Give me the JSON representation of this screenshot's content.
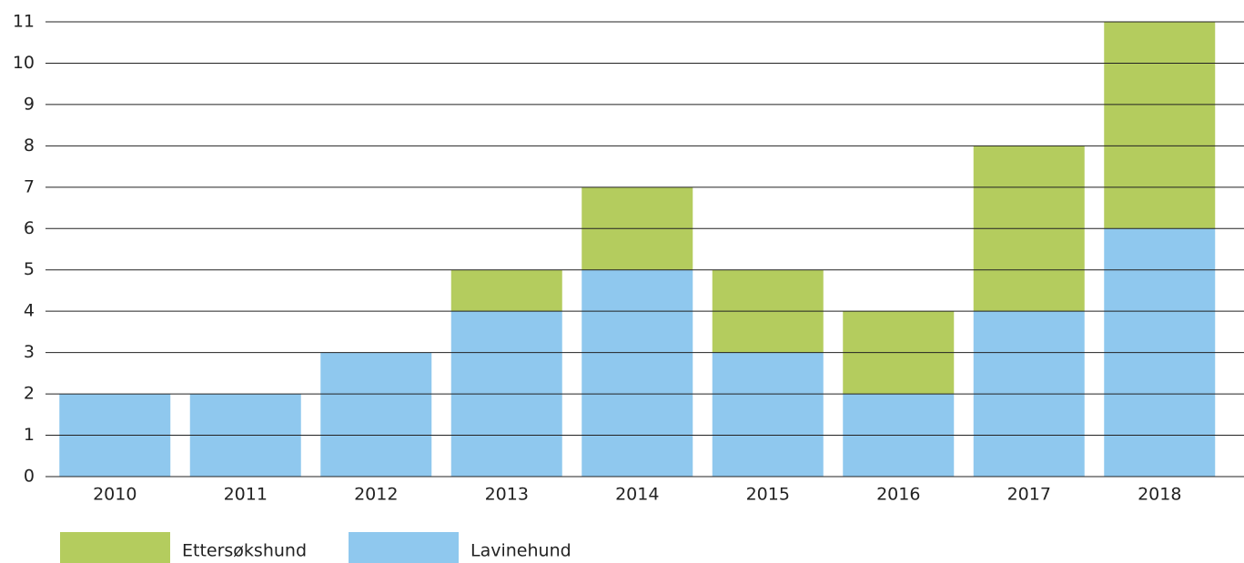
{
  "chart_data": {
    "type": "stacked_bar",
    "categories": [
      "2010",
      "2011",
      "2012",
      "2013",
      "2014",
      "2015",
      "2016",
      "2017",
      "2018"
    ],
    "series": [
      {
        "name": "Ettersøkshund",
        "color": "#b4cc5e",
        "values": [
          0,
          0,
          0,
          1,
          2,
          2,
          2,
          4,
          5
        ]
      },
      {
        "name": "Lavinehund",
        "color": "#8fc8ee",
        "values": [
          2,
          2,
          3,
          4,
          5,
          3,
          2,
          4,
          6
        ]
      }
    ],
    "ylim": [
      0,
      11
    ],
    "yticks": [
      0,
      1,
      2,
      3,
      4,
      5,
      6,
      7,
      8,
      9,
      10,
      11
    ],
    "grid": true,
    "legend": "bottom"
  }
}
